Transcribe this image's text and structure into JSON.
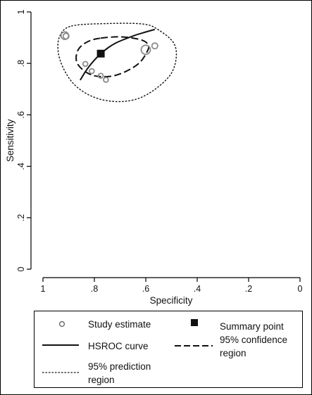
{
  "chart_data": {
    "type": "scatter",
    "title": "",
    "xlabel": "Specificity",
    "ylabel": "Sensitivity",
    "x_reversed": true,
    "xlim": [
      1,
      0
    ],
    "ylim": [
      0,
      1
    ],
    "x_ticks": [
      1,
      0.8,
      0.6,
      0.4,
      0.2,
      0
    ],
    "x_tick_labels": [
      "1",
      ".8",
      ".6",
      ".4",
      ".2",
      "0"
    ],
    "y_ticks": [
      0,
      0.2,
      0.4,
      0.6,
      0.8,
      1
    ],
    "y_tick_labels": [
      "0",
      ".2",
      ".4",
      ".6",
      ".8",
      "1"
    ],
    "grid": false,
    "legend_position": "bottom",
    "study_estimates": [
      {
        "specificity": 0.915,
        "sensitivity": 0.908,
        "weight": 1.6
      },
      {
        "specificity": 0.91,
        "sensitivity": 0.906,
        "weight": 1.2
      },
      {
        "specificity": 0.835,
        "sensitivity": 0.798,
        "weight": 1.0
      },
      {
        "specificity": 0.81,
        "sensitivity": 0.77,
        "weight": 1.0
      },
      {
        "specificity": 0.775,
        "sensitivity": 0.752,
        "weight": 1.0
      },
      {
        "specificity": 0.755,
        "sensitivity": 0.736,
        "weight": 1.0
      },
      {
        "specificity": 0.6,
        "sensitivity": 0.853,
        "weight": 1.9
      },
      {
        "specificity": 0.565,
        "sensitivity": 0.868,
        "weight": 1.2
      }
    ],
    "summary_point": {
      "specificity": 0.775,
      "sensitivity": 0.838
    },
    "hsroc_curve": [
      [
        0.855,
        0.735
      ],
      [
        0.835,
        0.768
      ],
      [
        0.815,
        0.795
      ],
      [
        0.795,
        0.818
      ],
      [
        0.775,
        0.838
      ],
      [
        0.745,
        0.862
      ],
      [
        0.715,
        0.88
      ],
      [
        0.68,
        0.895
      ],
      [
        0.64,
        0.91
      ],
      [
        0.6,
        0.922
      ],
      [
        0.565,
        0.932
      ]
    ],
    "confidence_region": [
      [
        0.775,
        0.898
      ],
      [
        0.695,
        0.903
      ],
      [
        0.62,
        0.892
      ],
      [
        0.59,
        0.872
      ],
      [
        0.595,
        0.845
      ],
      [
        0.625,
        0.802
      ],
      [
        0.675,
        0.77
      ],
      [
        0.735,
        0.75
      ],
      [
        0.8,
        0.752
      ],
      [
        0.845,
        0.775
      ],
      [
        0.87,
        0.81
      ],
      [
        0.862,
        0.855
      ],
      [
        0.825,
        0.885
      ]
    ],
    "prediction_region": [
      [
        0.89,
        0.945
      ],
      [
        0.75,
        0.955
      ],
      [
        0.61,
        0.953
      ],
      [
        0.55,
        0.93
      ],
      [
        0.492,
        0.88
      ],
      [
        0.482,
        0.82
      ],
      [
        0.505,
        0.755
      ],
      [
        0.57,
        0.695
      ],
      [
        0.64,
        0.66
      ],
      [
        0.72,
        0.652
      ],
      [
        0.8,
        0.668
      ],
      [
        0.87,
        0.71
      ],
      [
        0.915,
        0.77
      ],
      [
        0.94,
        0.84
      ],
      [
        0.935,
        0.905
      ]
    ],
    "legend": {
      "study_estimate": "Study estimate",
      "summary_point": "Summary point",
      "hsroc_curve": "HSROC curve",
      "confidence_line1": "95% confidence",
      "confidence_line2": "region",
      "prediction_line1": "95% prediction",
      "prediction_line2": "region"
    }
  }
}
